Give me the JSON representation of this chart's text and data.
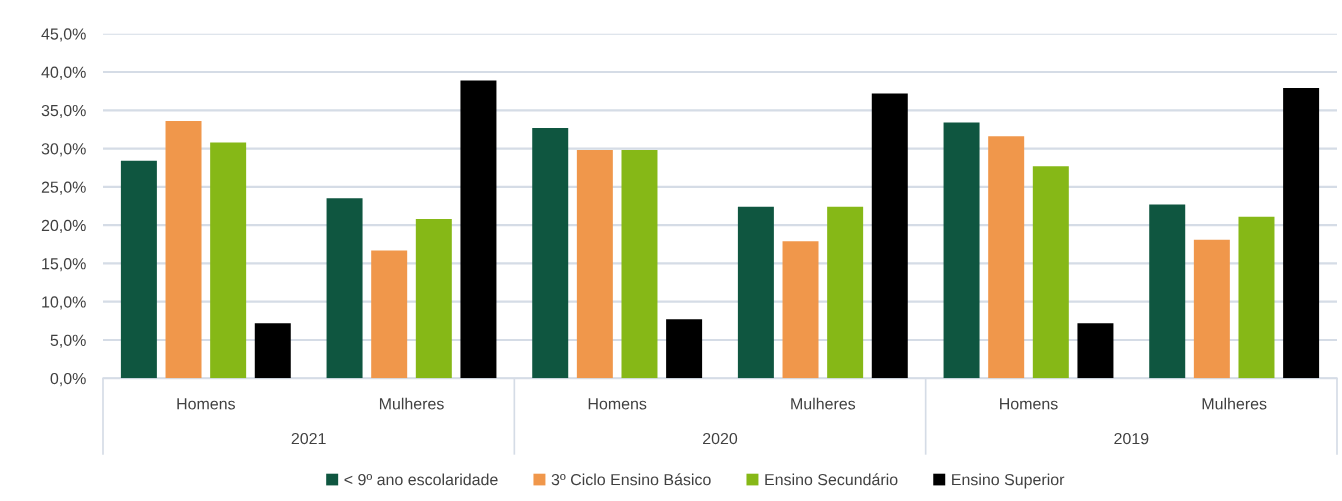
{
  "chart_data": {
    "type": "bar",
    "categories": [
      "Homens",
      "Mulheres",
      "Homens",
      "Mulheres",
      "Homens",
      "Mulheres"
    ],
    "series": [
      {
        "name": "< 9º ano escolaridade",
        "color": "#0f5640",
        "values": [
          28.4,
          23.5,
          32.7,
          22.4,
          33.4,
          22.7
        ]
      },
      {
        "name": "3º Ciclo Ensino Básico",
        "color": "#f0974b",
        "values": [
          33.6,
          16.7,
          29.8,
          17.9,
          31.6,
          18.1
        ]
      },
      {
        "name": "Ensino Secundário",
        "color": "#86b817",
        "values": [
          30.8,
          20.8,
          29.8,
          22.4,
          27.7,
          21.1
        ]
      },
      {
        "name": "Ensino Superior",
        "color": "#000000",
        "values": [
          7.2,
          38.9,
          7.7,
          37.2,
          7.2,
          37.9
        ]
      }
    ],
    "annotations": [
      "2021",
      "2020",
      "2019"
    ],
    "ylim": [
      0,
      45
    ],
    "yticks": [
      {
        "value": 0,
        "label": "0,0%"
      },
      {
        "value": 5,
        "label": "5,0%"
      },
      {
        "value": 10,
        "label": "10,0%"
      },
      {
        "value": 15,
        "label": "15,0%"
      },
      {
        "value": 20,
        "label": "20,0%"
      },
      {
        "value": 25,
        "label": "25,0%"
      },
      {
        "value": 30,
        "label": "30,0%"
      },
      {
        "value": 35,
        "label": "35,0%"
      },
      {
        "value": 40,
        "label": "40,0%"
      },
      {
        "value": 45,
        "label": "45,0%"
      }
    ],
    "grid": "y",
    "legend": "bottom"
  }
}
